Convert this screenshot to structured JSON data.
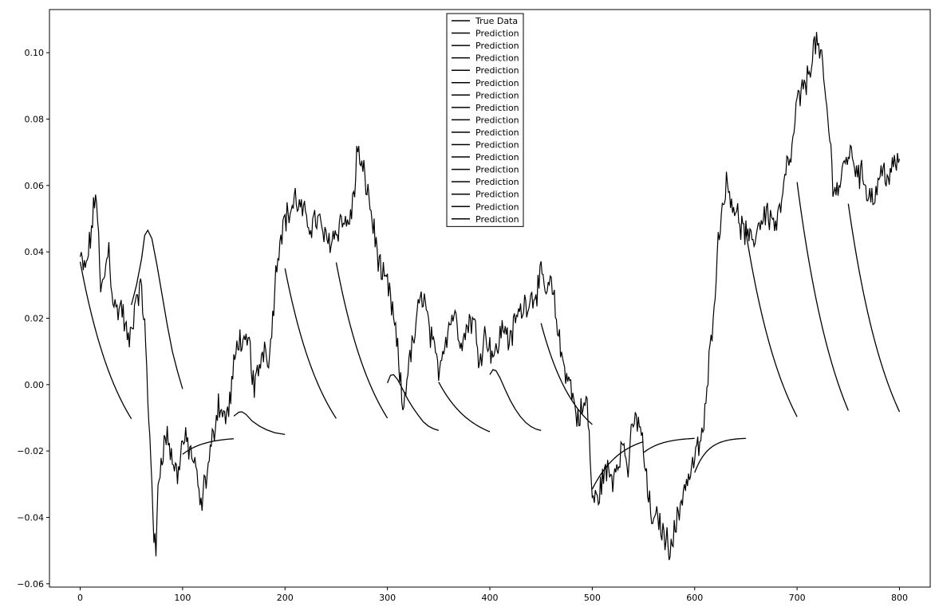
{
  "chart_data": {
    "type": "line",
    "title": "",
    "xlabel": "",
    "ylabel": "",
    "xlim": [
      -30,
      830
    ],
    "ylim": [
      -0.061,
      0.113
    ],
    "xticks": [
      0,
      100,
      200,
      300,
      400,
      500,
      600,
      700,
      800
    ],
    "xtick_labels": [
      "0",
      "100",
      "200",
      "300",
      "400",
      "500",
      "600",
      "700",
      "800"
    ],
    "yticks": [
      -0.06,
      -0.04,
      -0.02,
      0.0,
      0.02,
      0.04,
      0.06,
      0.08,
      0.1
    ],
    "ytick_labels": [
      "−0.06",
      "−0.04",
      "−0.02",
      "0.00",
      "0.02",
      "0.04",
      "0.06",
      "0.08",
      "0.10"
    ],
    "grid": false,
    "legend": {
      "placement": "upper-center",
      "entries": [
        "True Data",
        "Prediction",
        "Prediction",
        "Prediction",
        "Prediction",
        "Prediction",
        "Prediction",
        "Prediction",
        "Prediction",
        "Prediction",
        "Prediction",
        "Prediction",
        "Prediction",
        "Prediction",
        "Prediction",
        "Prediction",
        "Prediction"
      ]
    },
    "line_color": "#000000",
    "true_data": {
      "name": "True Data",
      "x": [
        0,
        5,
        10,
        13,
        16,
        20,
        25,
        28,
        31,
        35,
        40,
        45,
        47,
        50,
        55,
        60,
        63,
        66,
        70,
        72,
        74,
        76,
        80,
        85,
        90,
        95,
        100,
        105,
        110,
        115,
        118,
        120,
        125,
        130,
        135,
        140,
        145,
        150,
        155,
        160,
        165,
        170,
        175,
        180,
        185,
        190,
        195,
        200,
        205,
        210,
        215,
        220,
        225,
        230,
        235,
        240,
        245,
        250,
        255,
        260,
        265,
        268,
        270,
        275,
        280,
        285,
        290,
        295,
        300,
        305,
        310,
        315,
        320,
        325,
        330,
        335,
        340,
        345,
        350,
        355,
        360,
        365,
        370,
        375,
        380,
        385,
        390,
        395,
        400,
        405,
        410,
        415,
        420,
        425,
        430,
        435,
        440,
        445,
        450,
        455,
        460,
        465,
        470,
        475,
        480,
        485,
        490,
        495,
        500,
        505,
        510,
        515,
        520,
        525,
        530,
        535,
        540,
        545,
        550,
        555,
        560,
        565,
        570,
        575,
        580,
        585,
        590,
        595,
        600,
        605,
        610,
        615,
        620,
        625,
        630,
        635,
        640,
        645,
        650,
        655,
        660,
        665,
        670,
        675,
        680,
        685,
        690,
        695,
        700,
        705,
        710,
        715,
        720,
        722,
        725,
        730,
        735,
        740,
        745,
        750,
        755,
        760,
        765,
        770,
        775,
        780,
        785,
        790,
        795,
        800
      ],
      "y": [
        0.038,
        0.034,
        0.044,
        0.052,
        0.058,
        0.027,
        0.035,
        0.042,
        0.028,
        0.022,
        0.024,
        0.016,
        0.012,
        0.016,
        0.028,
        0.028,
        0.018,
        -0.005,
        -0.028,
        -0.045,
        -0.053,
        -0.03,
        -0.02,
        -0.015,
        -0.023,
        -0.027,
        -0.017,
        -0.018,
        -0.022,
        -0.03,
        -0.038,
        -0.032,
        -0.025,
        -0.015,
        -0.005,
        -0.01,
        -0.008,
        0.005,
        0.015,
        0.01,
        0.013,
        -0.002,
        0.006,
        0.012,
        0.008,
        0.03,
        0.045,
        0.05,
        0.052,
        0.056,
        0.053,
        0.05,
        0.048,
        0.05,
        0.048,
        0.043,
        0.044,
        0.046,
        0.05,
        0.048,
        0.052,
        0.058,
        0.071,
        0.065,
        0.06,
        0.05,
        0.04,
        0.032,
        0.03,
        0.022,
        0.01,
        -0.008,
        0.005,
        0.012,
        0.022,
        0.028,
        0.018,
        0.01,
        0.005,
        0.012,
        0.018,
        0.022,
        0.015,
        0.014,
        0.02,
        0.018,
        0.008,
        0.015,
        0.012,
        0.008,
        0.015,
        0.018,
        0.012,
        0.02,
        0.022,
        0.025,
        0.026,
        0.028,
        0.032,
        0.028,
        0.03,
        0.02,
        0.008,
        0.004,
        -0.002,
        -0.01,
        -0.008,
        -0.005,
        -0.034,
        -0.035,
        -0.028,
        -0.026,
        -0.028,
        -0.022,
        -0.018,
        -0.025,
        -0.012,
        -0.01,
        -0.02,
        -0.035,
        -0.042,
        -0.04,
        -0.046,
        -0.048,
        -0.045,
        -0.038,
        -0.03,
        -0.028,
        -0.022,
        -0.018,
        -0.01,
        0.01,
        0.03,
        0.05,
        0.06,
        0.058,
        0.052,
        0.048,
        0.045,
        0.042,
        0.046,
        0.05,
        0.052,
        0.05,
        0.048,
        0.055,
        0.065,
        0.07,
        0.085,
        0.088,
        0.092,
        0.1,
        0.104,
        0.098,
        0.095,
        0.08,
        0.062,
        0.058,
        0.065,
        0.07,
        0.068,
        0.064,
        0.062,
        0.058,
        0.056,
        0.062,
        0.065,
        0.062,
        0.066,
        0.068
      ]
    },
    "predictions": [
      {
        "name": "Prediction",
        "x0": 0,
        "x1": 50,
        "kind": "decay",
        "y0": 0.037,
        "y_end": -0.0103,
        "y_asym": -0.0205,
        "k": 0.027
      },
      {
        "name": "Prediction",
        "x0": 50,
        "x1": 100,
        "kind": "hump",
        "points": [
          [
            50,
            0.024
          ],
          [
            55,
            0.03
          ],
          [
            60,
            0.038
          ],
          [
            63,
            0.045
          ],
          [
            66,
            0.0465
          ],
          [
            70,
            0.044
          ],
          [
            75,
            0.036
          ],
          [
            80,
            0.027
          ],
          [
            85,
            0.018
          ],
          [
            90,
            0.01
          ],
          [
            95,
            0.004
          ],
          [
            100,
            -0.0013
          ]
        ]
      },
      {
        "name": "Prediction",
        "x0": 100,
        "x1": 150,
        "kind": "rise",
        "y0": -0.021,
        "y_end": -0.0163,
        "y_asym": -0.0155,
        "k": 0.045
      },
      {
        "name": "Prediction",
        "x0": 150,
        "x1": 200,
        "kind": "hump",
        "points": [
          [
            150,
            -0.0095
          ],
          [
            155,
            -0.0083
          ],
          [
            158,
            -0.0082
          ],
          [
            162,
            -0.009
          ],
          [
            168,
            -0.011
          ],
          [
            175,
            -0.0125
          ],
          [
            182,
            -0.0136
          ],
          [
            190,
            -0.0145
          ],
          [
            200,
            -0.015
          ]
        ]
      },
      {
        "name": "Prediction",
        "x0": 200,
        "x1": 250,
        "kind": "decay",
        "y0": 0.035,
        "y_end": -0.0102,
        "y_asym": -0.0205,
        "k": 0.027
      },
      {
        "name": "Prediction",
        "x0": 250,
        "x1": 300,
        "kind": "decay",
        "y0": 0.0368,
        "y_end": -0.0101,
        "y_asym": -0.0205,
        "k": 0.027
      },
      {
        "name": "Prediction",
        "x0": 300,
        "x1": 350,
        "kind": "hump",
        "points": [
          [
            300,
            0.0005
          ],
          [
            303,
            0.0028
          ],
          [
            306,
            0.003
          ],
          [
            310,
            0.0015
          ],
          [
            315,
            -0.0015
          ],
          [
            320,
            -0.0045
          ],
          [
            325,
            -0.007
          ],
          [
            330,
            -0.0092
          ],
          [
            335,
            -0.0112
          ],
          [
            340,
            -0.0125
          ],
          [
            345,
            -0.0133
          ],
          [
            350,
            -0.0138
          ]
        ]
      },
      {
        "name": "Prediction",
        "x0": 350,
        "x1": 400,
        "kind": "decay",
        "y0": 0.0008,
        "y_end": -0.0142,
        "y_asym": -0.019,
        "k": 0.03
      },
      {
        "name": "Prediction",
        "x0": 400,
        "x1": 450,
        "kind": "hump",
        "points": [
          [
            400,
            0.003
          ],
          [
            403,
            0.0045
          ],
          [
            406,
            0.0042
          ],
          [
            410,
            0.002
          ],
          [
            415,
            -0.0015
          ],
          [
            420,
            -0.0048
          ],
          [
            425,
            -0.0075
          ],
          [
            430,
            -0.0097
          ],
          [
            435,
            -0.0114
          ],
          [
            440,
            -0.0126
          ],
          [
            445,
            -0.0134
          ],
          [
            450,
            -0.0138
          ]
        ]
      },
      {
        "name": "Prediction",
        "x0": 450,
        "x1": 500,
        "kind": "decay",
        "y0": 0.0185,
        "y_end": -0.012,
        "y_asym": -0.02,
        "k": 0.03
      },
      {
        "name": "Prediction",
        "x0": 500,
        "x1": 550,
        "kind": "rise",
        "y0": -0.0315,
        "y_end": -0.0172,
        "y_asym": -0.0135,
        "k": 0.035
      },
      {
        "name": "Prediction",
        "x0": 550,
        "x1": 600,
        "kind": "rise",
        "y0": -0.0205,
        "y_end": -0.0162,
        "y_asym": -0.0155,
        "k": 0.05
      },
      {
        "name": "Prediction",
        "x0": 600,
        "x1": 650,
        "kind": "rise",
        "y0": -0.0265,
        "y_end": -0.0162,
        "y_asym": -0.0155,
        "k": 0.075
      },
      {
        "name": "Prediction",
        "x0": 650,
        "x1": 700,
        "kind": "decay",
        "y0": 0.046,
        "y_end": -0.0097,
        "y_asym": -0.0205,
        "k": 0.027
      },
      {
        "name": "Prediction",
        "x0": 700,
        "x1": 750,
        "kind": "decay",
        "y0": 0.061,
        "y_end": -0.0078,
        "y_asym": -0.0205,
        "k": 0.027
      },
      {
        "name": "Prediction",
        "x0": 750,
        "x1": 800,
        "kind": "decay",
        "y0": 0.0545,
        "y_end": -0.0082,
        "y_asym": -0.0205,
        "k": 0.027
      }
    ]
  }
}
